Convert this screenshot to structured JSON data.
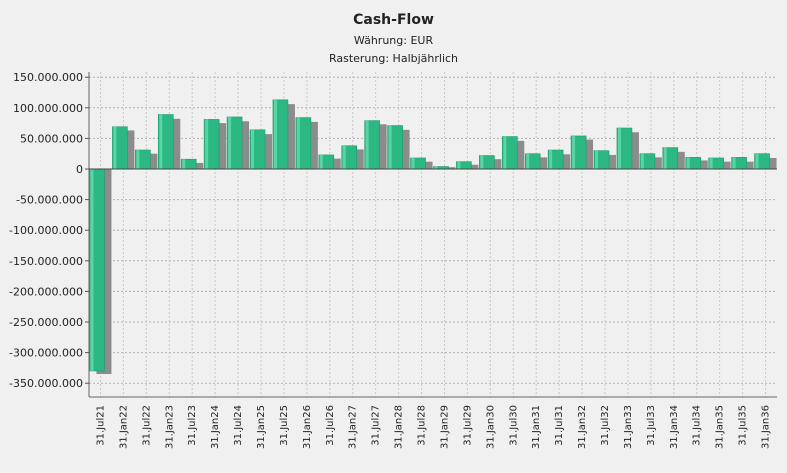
{
  "chart_data": {
    "type": "bar",
    "title": "Cash-Flow",
    "subtitle_1": "Währung: EUR",
    "subtitle_2": "Rasterung: Halbjährlich",
    "ylim": [
      -375000000,
      160000000
    ],
    "yticks": [
      150000000,
      100000000,
      50000000,
      0,
      -50000000,
      -100000000,
      -150000000,
      -200000000,
      -250000000,
      -300000000,
      -350000000
    ],
    "ytick_labels": [
      "150.000.000",
      "100.000.000",
      "50.000.000",
      "0",
      "-50.000.000",
      "-100.000.000",
      "-150.000.000",
      "-200.000.000",
      "-250.000.000",
      "-300.000.000",
      "-350.000.000"
    ],
    "categories": [
      "31.Jul21",
      "31.Jan22",
      "31.Jul22",
      "31.Jan23",
      "31.Jul23",
      "31.Jan24",
      "31.Jul24",
      "31.Jan25",
      "31.Jul25",
      "31.Jan26",
      "31.Jul26",
      "31.Jan27",
      "31.Jul27",
      "31.Jan28",
      "31.Jul28",
      "31.Jan29",
      "31.Jul29",
      "31.Jan30",
      "31.Jul30",
      "31.Jan31",
      "31.Jul31",
      "31.Jan32",
      "31.Jul32",
      "31.Jan33",
      "31.Jul33",
      "31.Jan34",
      "31.Jul34",
      "31.Jan35",
      "31.Jul35",
      "31.Jan36"
    ],
    "series": [
      {
        "values": [
          -330000000,
          69000000,
          31000000,
          89000000,
          16000000,
          81000000,
          85000000,
          64000000,
          113000000,
          84000000,
          23000000,
          38000000,
          79000000,
          71000000,
          18000000,
          4000000,
          12000000,
          22000000,
          53000000,
          25000000,
          31000000,
          54000000,
          30000000,
          67000000,
          25000000,
          35000000,
          19000000,
          18000000,
          19000000,
          25000000
        ],
        "color": "#2bb883"
      },
      {
        "values": [
          -335000000,
          63000000,
          25000000,
          82000000,
          10000000,
          75000000,
          78000000,
          57000000,
          106000000,
          77000000,
          17000000,
          32000000,
          73000000,
          64000000,
          12000000,
          3000000,
          7000000,
          16000000,
          46000000,
          19000000,
          24000000,
          48000000,
          23000000,
          60000000,
          19000000,
          28000000,
          14000000,
          12000000,
          12000000,
          18000000
        ],
        "color": "#8c8c8c"
      }
    ],
    "grid": true,
    "legend": "none"
  }
}
